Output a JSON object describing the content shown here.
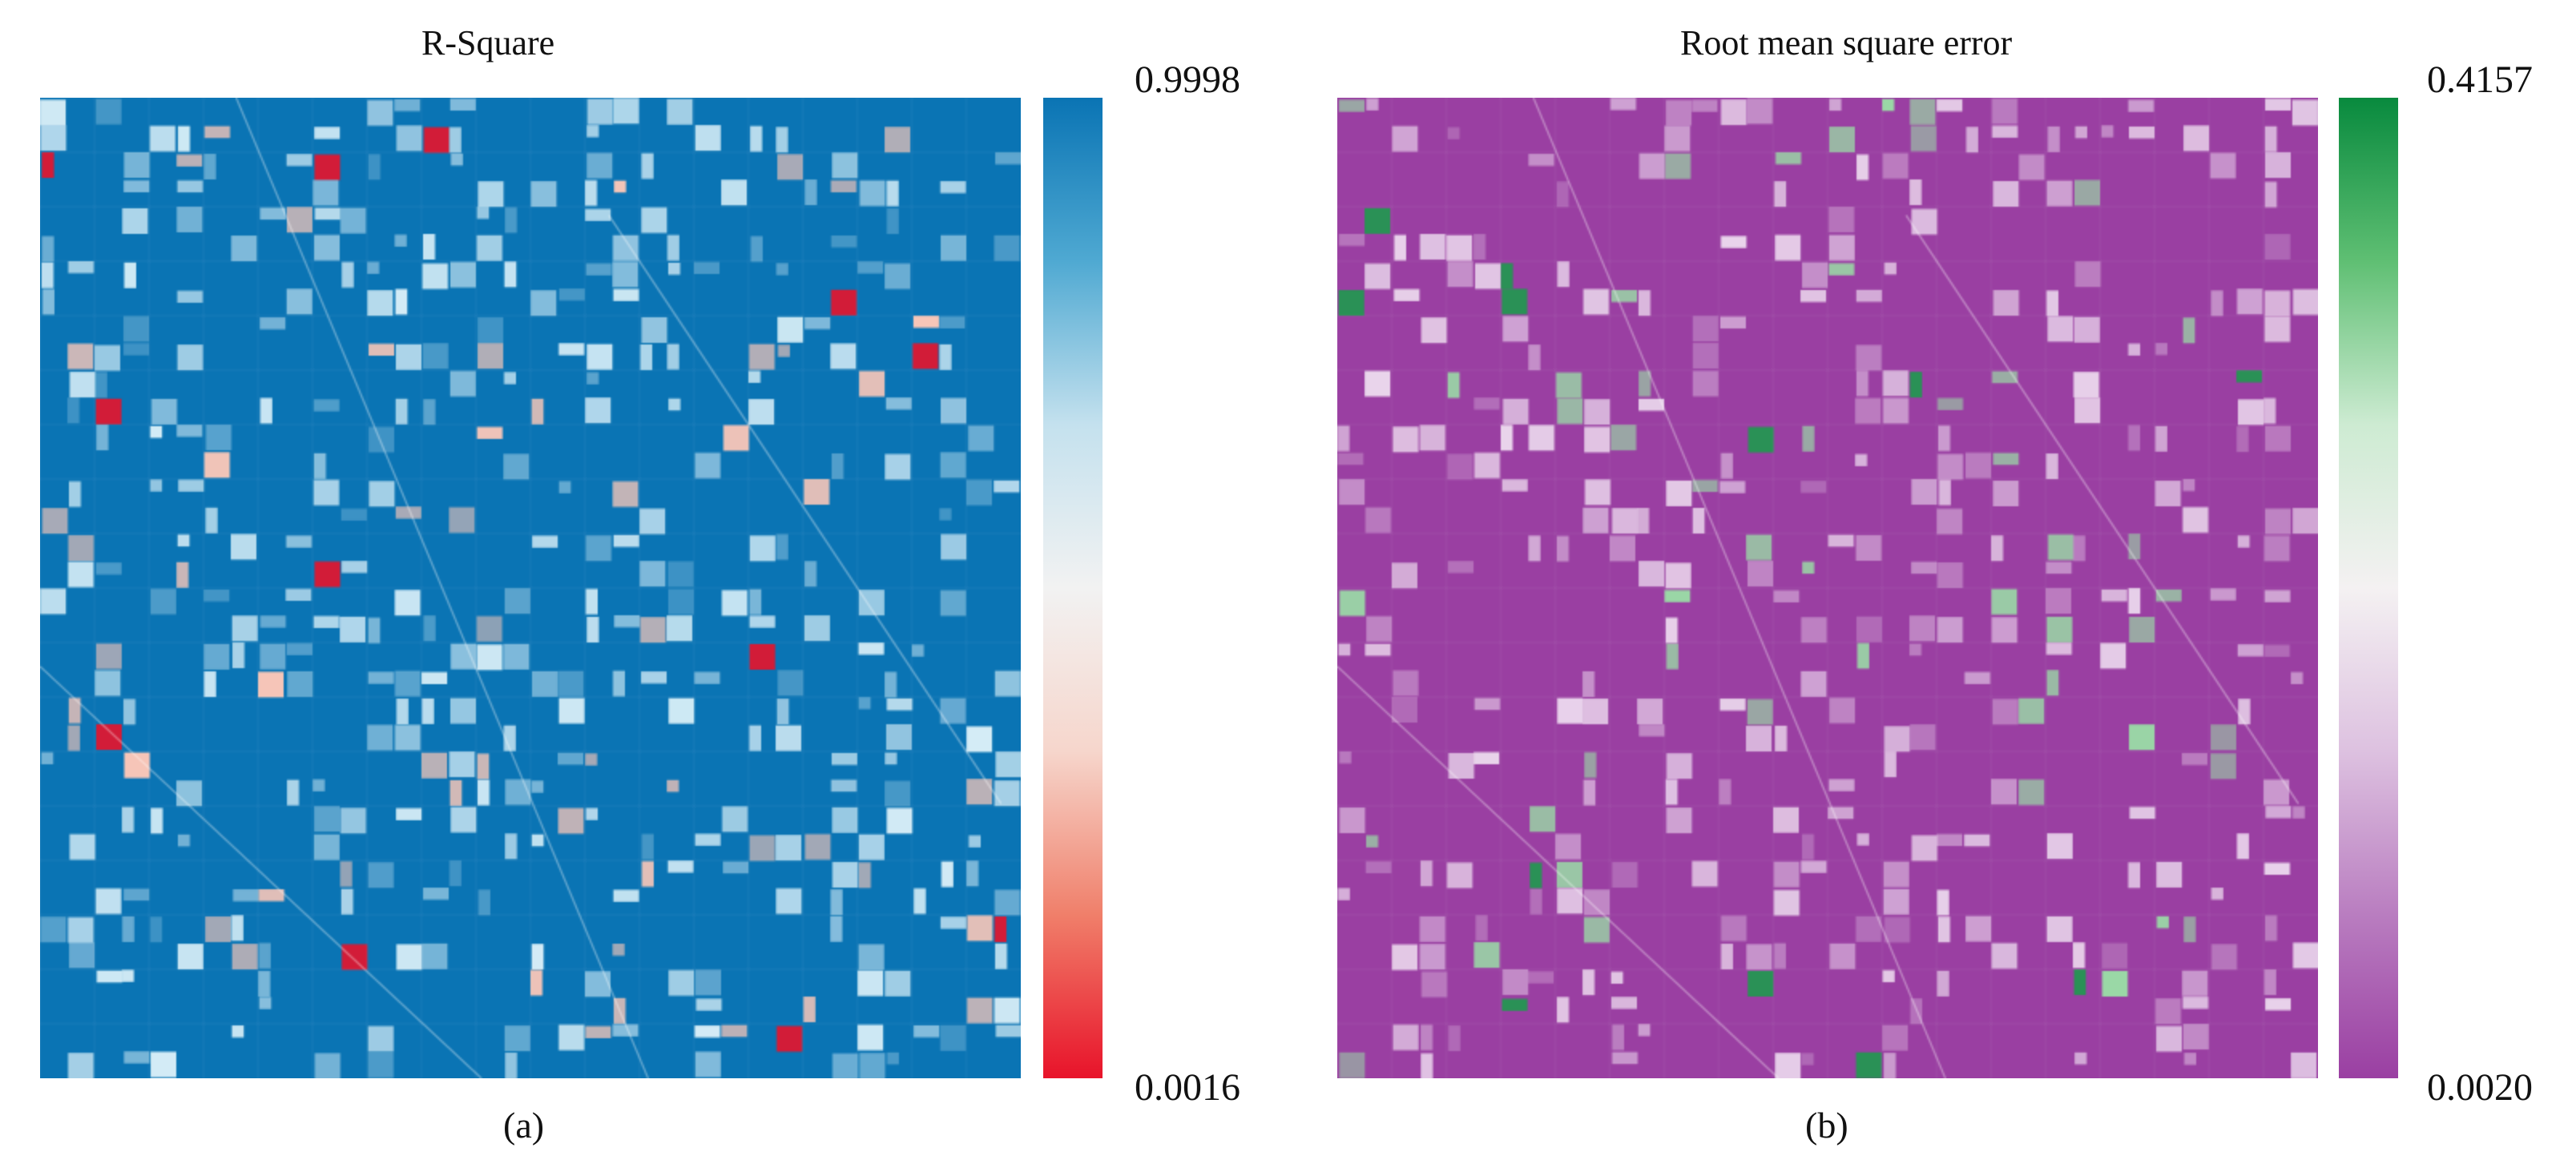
{
  "panels": [
    {
      "id": "a",
      "title": "R-Square",
      "caption": "(a)",
      "colorbar": {
        "max_label": "0.9998",
        "min_label": "0.0016",
        "max_value": 0.9998,
        "min_value": 0.0016,
        "colors": [
          "#e8132a",
          "#f07f6a",
          "#f6d6cc",
          "#f2f2f2",
          "#c4e1ee",
          "#4fa9d2",
          "#0a74b4"
        ]
      },
      "map_colors": {
        "base": "#0a74b4",
        "light": "#d4ecf6",
        "low": "#f7c6b8",
        "min": "#e8132a"
      }
    },
    {
      "id": "b",
      "title": "Root mean square error",
      "caption": "(b)",
      "colorbar": {
        "max_label": "0.4157",
        "min_label": "0.0020",
        "max_value": 0.4157,
        "min_value": 0.002,
        "colors": [
          "#9a3fa2",
          "#b97dc0",
          "#ddc1e0",
          "#f4f1f2",
          "#cdebd2",
          "#5fbf73",
          "#088a3e"
        ]
      },
      "map_colors": {
        "base": "#9a3fa2",
        "light": "#ead6ec",
        "high": "#9ad9a6",
        "max": "#1e9a4e"
      }
    }
  ]
}
